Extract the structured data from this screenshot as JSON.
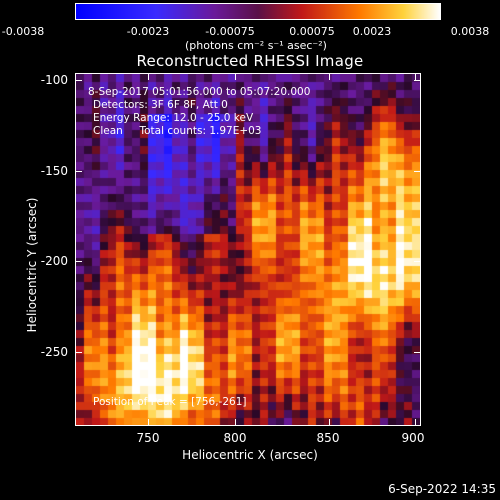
{
  "colorbar": {
    "ticks": [
      "-0.0038",
      "-0.0023",
      "-0.00075",
      "0.00075",
      "0.0023",
      "0.0038"
    ],
    "unit_label": "(photons cm⁻² s⁻¹ asec⁻²)"
  },
  "title": "Reconstructed RHESSI Image",
  "info": {
    "line1": "8-Sep-2017 05:01:56.000 to 05:07:20.000",
    "line2": "Detectors: 3F 6F 8F, Att 0",
    "line3": "Energy Range: 12.0 - 25.0 keV",
    "line4": "Clean     Total counts: 1.97E+03",
    "peak": "Position of Peak = [756,-261]"
  },
  "axes": {
    "x_title": "Heliocentric X (arcsec)",
    "y_title": "Heliocentric Y (arcsec)",
    "x_ticks": [
      "750",
      "800",
      "850",
      "900"
    ],
    "y_ticks": [
      "-100",
      "-150",
      "-200",
      "-250"
    ]
  },
  "footer": "6-Sep-2022 14:35",
  "colors": {
    "low": "#0000ff",
    "mid": "#6a1a8a",
    "high": "#ffffff"
  }
}
